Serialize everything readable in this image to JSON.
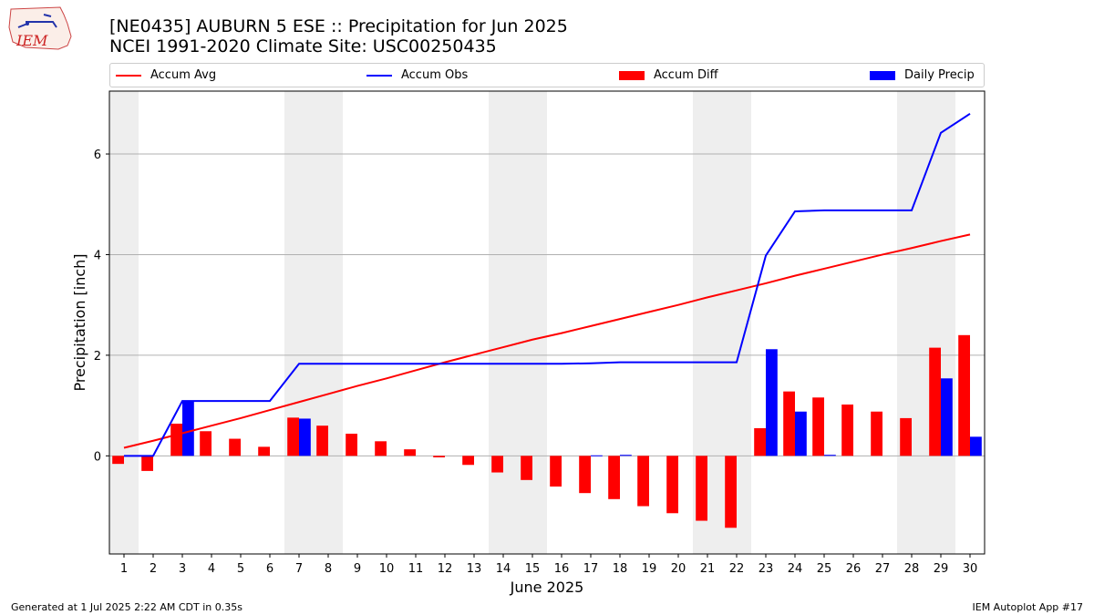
{
  "header": {
    "title_line1": "[NE0435] AUBURN 5 ESE :: Precipitation for Jun 2025",
    "title_line2": "NCEI 1991-2020 Climate Site: USC00250435",
    "logo_text": "IEM"
  },
  "legend": [
    {
      "label": "Accum Avg",
      "color": "#ff0000",
      "kind": "line"
    },
    {
      "label": "Accum Obs",
      "color": "#0000ff",
      "kind": "line"
    },
    {
      "label": "Accum Diff",
      "color": "#ff0000",
      "kind": "bar"
    },
    {
      "label": "Daily Precip",
      "color": "#0000ff",
      "kind": "bar"
    }
  ],
  "footer": {
    "left": "Generated at 1 Jul 2025 2:22 AM CDT in 0.35s",
    "right": "IEM Autoplot App #17"
  },
  "chart_data": {
    "type": "bar",
    "xlabel": "June 2025",
    "ylabel": "Precipitation [inch]",
    "ylim": [
      -1.95,
      7.25
    ],
    "yticks": [
      0,
      2,
      4,
      6
    ],
    "grid": "horizontal",
    "legend_position": "top",
    "days": [
      1,
      2,
      3,
      4,
      5,
      6,
      7,
      8,
      9,
      10,
      11,
      12,
      13,
      14,
      15,
      16,
      17,
      18,
      19,
      20,
      21,
      22,
      23,
      24,
      25,
      26,
      27,
      28,
      29,
      30
    ],
    "weekend_shaded_days": [
      [
        1,
        1
      ],
      [
        7,
        8
      ],
      [
        14,
        15
      ],
      [
        21,
        22
      ],
      [
        28,
        29
      ]
    ],
    "series": [
      {
        "name": "Accum Avg",
        "type": "line",
        "color": "#ff0000",
        "values": [
          0.16,
          0.3,
          0.45,
          0.6,
          0.75,
          0.91,
          1.07,
          1.23,
          1.39,
          1.54,
          1.7,
          1.86,
          2.01,
          2.16,
          2.31,
          2.44,
          2.58,
          2.72,
          2.86,
          3.0,
          3.15,
          3.29,
          3.43,
          3.58,
          3.72,
          3.86,
          4.0,
          4.13,
          4.27,
          4.4
        ]
      },
      {
        "name": "Accum Obs",
        "type": "line",
        "color": "#0000ff",
        "values": [
          0,
          0,
          1.09,
          1.09,
          1.09,
          1.09,
          1.83,
          1.83,
          1.83,
          1.83,
          1.83,
          1.83,
          1.83,
          1.83,
          1.83,
          1.83,
          1.84,
          1.86,
          1.86,
          1.86,
          1.86,
          1.86,
          3.98,
          4.86,
          4.88,
          4.88,
          4.88,
          4.88,
          6.42,
          6.8
        ]
      },
      {
        "name": "Accum Diff",
        "type": "bar",
        "color": "#ff0000",
        "values": [
          -0.16,
          -0.3,
          0.64,
          0.49,
          0.34,
          0.18,
          0.76,
          0.6,
          0.44,
          0.29,
          0.13,
          -0.03,
          -0.18,
          -0.33,
          -0.48,
          -0.61,
          -0.74,
          -0.86,
          -1.0,
          -1.14,
          -1.29,
          -1.43,
          0.55,
          1.28,
          1.16,
          1.02,
          0.88,
          0.75,
          2.15,
          2.4
        ]
      },
      {
        "name": "Daily Precip",
        "type": "bar",
        "color": "#0000ff",
        "values": [
          0,
          0,
          1.09,
          0,
          0,
          0,
          0.74,
          0,
          0,
          0,
          0,
          0,
          0,
          0,
          0,
          0,
          0.01,
          0.02,
          0,
          0,
          0,
          0,
          2.12,
          0.88,
          0.02,
          0,
          0,
          0,
          1.54,
          0.38
        ]
      }
    ]
  }
}
